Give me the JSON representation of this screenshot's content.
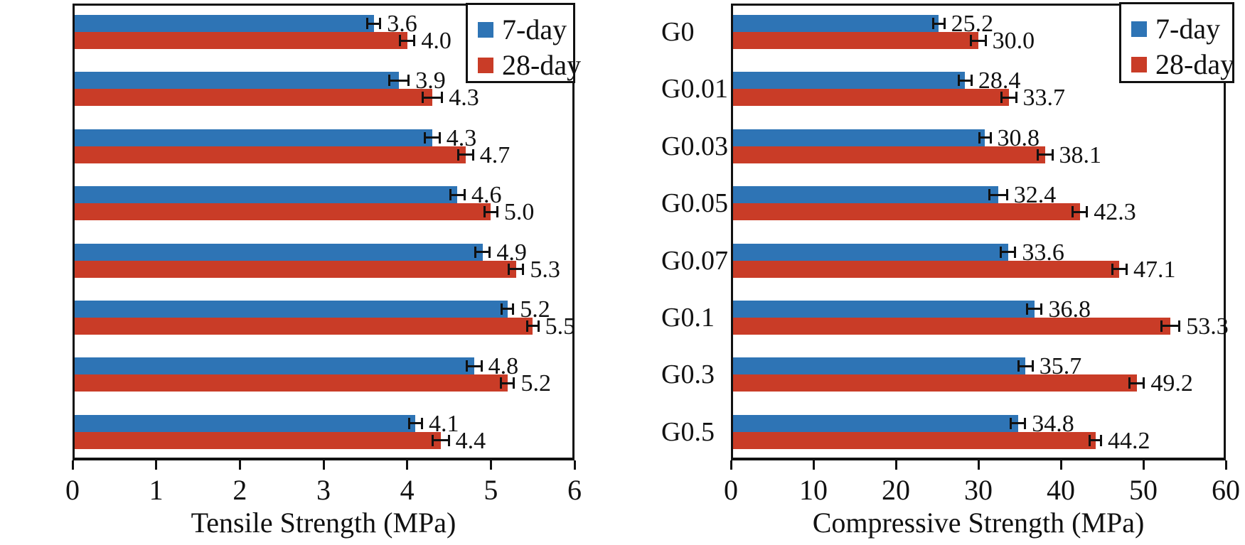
{
  "figure": {
    "background_color": "#ffffff",
    "axis_color": "#111111"
  },
  "chart_data": [
    {
      "type": "bar",
      "orientation": "horizontal",
      "title": "",
      "xlabel": "Tensile Strength (MPa)",
      "ylabel": "",
      "categories": [
        "G0",
        "G0.01",
        "G0.03",
        "G0.05",
        "G0.07",
        "G0.1",
        "G0.3",
        "G0.5"
      ],
      "series": [
        {
          "name": "7-day",
          "color": "#2E74B5",
          "values": [
            3.6,
            3.9,
            4.3,
            4.6,
            4.9,
            5.2,
            4.8,
            4.1
          ],
          "errors": [
            0.09,
            0.13,
            0.1,
            0.1,
            0.1,
            0.08,
            0.1,
            0.09
          ],
          "labels": [
            "3.6",
            "3.9",
            "4.3",
            "4.6",
            "4.9",
            "5.2",
            "4.8",
            "4.1"
          ]
        },
        {
          "name": "28-day",
          "color": "#C93C27",
          "values": [
            4.0,
            4.3,
            4.7,
            5.0,
            5.3,
            5.5,
            5.2,
            4.4
          ],
          "errors": [
            0.1,
            0.13,
            0.1,
            0.09,
            0.1,
            0.08,
            0.09,
            0.11
          ],
          "labels": [
            "4.0",
            "4.3",
            "4.7",
            "5.0",
            "5.3",
            "5.5",
            "5.2",
            "4.4"
          ]
        }
      ],
      "xlim": [
        0,
        6
      ],
      "xticks": [
        "0",
        "1",
        "2",
        "3",
        "4",
        "5",
        "6"
      ],
      "grid": false,
      "legend_position": "top-right",
      "error_bars": true
    },
    {
      "type": "bar",
      "orientation": "horizontal",
      "title": "",
      "xlabel": "Compressive Strength (MPa)",
      "ylabel": "",
      "categories": [
        "G0",
        "G0.01",
        "G0.03",
        "G0.05",
        "G0.07",
        "G0.1",
        "G0.3",
        "G0.5"
      ],
      "series": [
        {
          "name": "7-day",
          "color": "#2E74B5",
          "values": [
            25.2,
            28.4,
            30.8,
            32.4,
            33.6,
            36.8,
            35.7,
            34.8
          ],
          "errors": [
            0.8,
            0.9,
            0.8,
            1.2,
            1.0,
            1.0,
            1.0,
            1.0
          ],
          "labels": [
            "25.2",
            "28.4",
            "30.8",
            "32.4",
            "33.6",
            "36.8",
            "35.7",
            "34.8"
          ]
        },
        {
          "name": "28-day",
          "color": "#C93C27",
          "values": [
            30.0,
            33.7,
            38.1,
            42.3,
            47.1,
            53.3,
            49.2,
            44.2
          ],
          "errors": [
            1.0,
            1.0,
            1.0,
            1.0,
            1.0,
            1.2,
            1.0,
            0.8
          ],
          "labels": [
            "30.0",
            "33.7",
            "38.1",
            "42.3",
            "47.1",
            "53.3",
            "49.2",
            "44.2"
          ]
        }
      ],
      "xlim": [
        0,
        60
      ],
      "xticks": [
        "0",
        "10",
        "20",
        "30",
        "40",
        "50",
        "60"
      ],
      "grid": false,
      "legend_position": "top-right",
      "error_bars": true
    }
  ]
}
